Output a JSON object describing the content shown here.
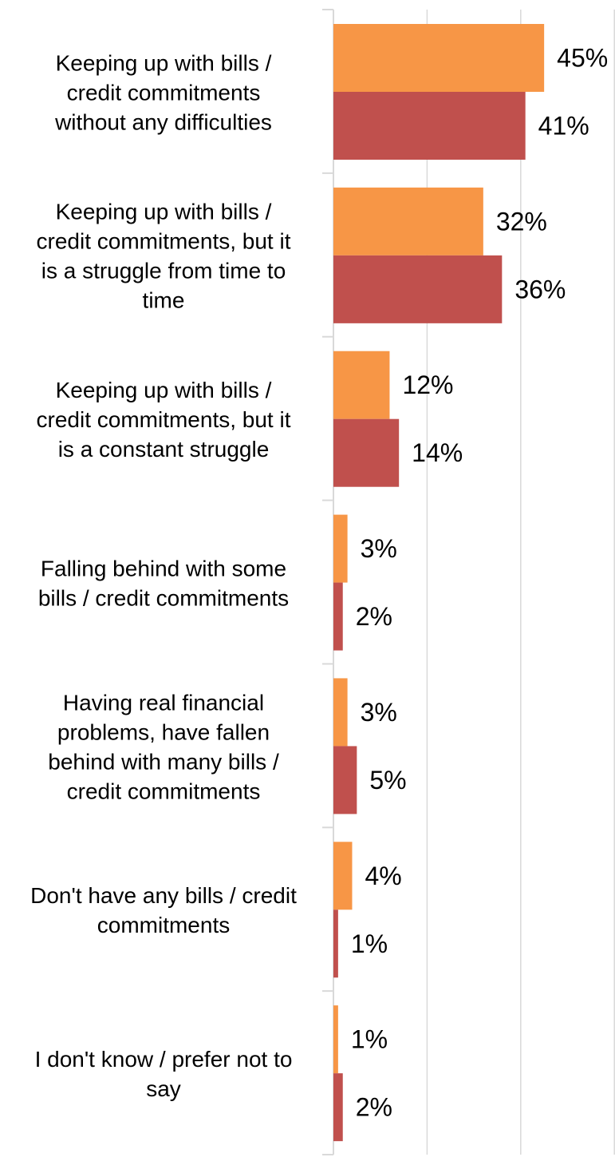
{
  "chart_data": {
    "type": "bar",
    "orientation": "horizontal",
    "categories": [
      "Keeping up with bills / credit commitments without any difficulties",
      "Keeping up with bills / credit commitments, but it is a struggle from time to time",
      "Keeping up with bills / credit commitments, but it is a constant struggle",
      "Falling behind with some bills / credit commitments",
      "Having real financial problems, have fallen behind with many bills / credit commitments",
      "Don't have any bills / credit commitments",
      "I don't know / prefer not to say"
    ],
    "category_label_lines": [
      [
        "Keeping up with bills /",
        "credit commitments",
        "without any difficulties"
      ],
      [
        "Keeping up with bills /",
        "credit commitments, but it",
        "is a struggle from time to",
        "time"
      ],
      [
        "Keeping up with bills /",
        "credit commitments, but it",
        "is a constant struggle"
      ],
      [
        "Falling behind with some",
        "bills / credit commitments"
      ],
      [
        "Having real financial",
        "problems, have fallen",
        "behind with many bills /",
        "credit commitments"
      ],
      [
        "Don't have any bills / credit",
        "commitments"
      ],
      [
        "I don't know / prefer not to",
        "say"
      ]
    ],
    "series": [
      {
        "color": "#F79646",
        "values": [
          45,
          32,
          12,
          3,
          3,
          4,
          1
        ],
        "labels": [
          "45%",
          "32%",
          "12%",
          "3%",
          "3%",
          "4%",
          "1%"
        ]
      },
      {
        "color": "#C0504D",
        "values": [
          41,
          36,
          14,
          2,
          5,
          1,
          2
        ],
        "labels": [
          "41%",
          "36%",
          "14%",
          "2%",
          "5%",
          "1%",
          "2%"
        ]
      }
    ],
    "xlim": [
      0,
      60
    ],
    "xticks": [
      0,
      20,
      40,
      60
    ],
    "tick_labels_shown": false,
    "grid": true,
    "legend": "none",
    "title": "",
    "xlabel": "",
    "ylabel": ""
  }
}
